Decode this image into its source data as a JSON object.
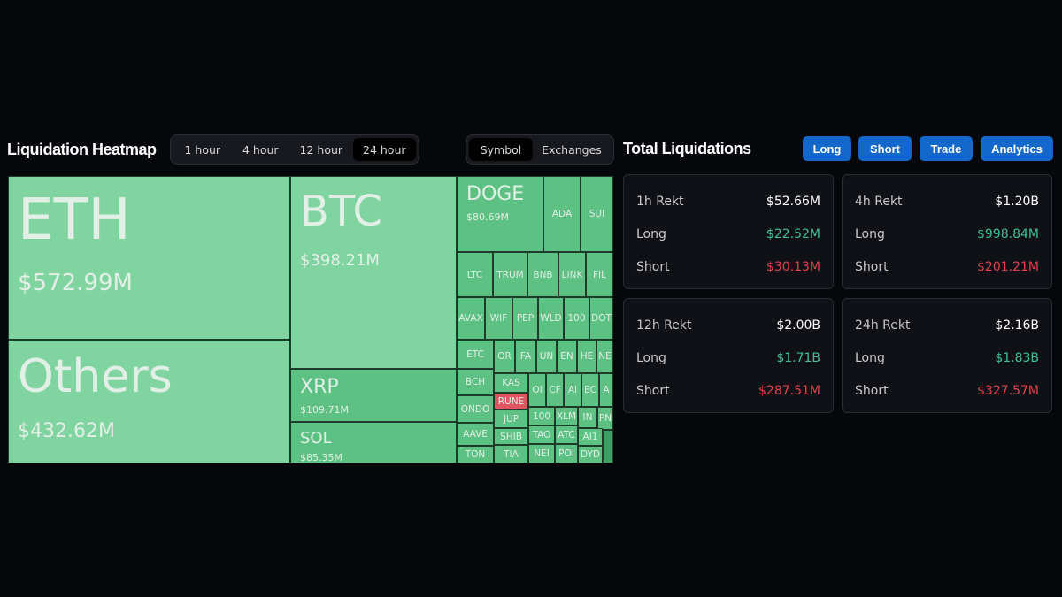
{
  "header": {
    "title": "Liquidation Heatmap",
    "time_tabs": [
      "1 hour",
      "4 hour",
      "12 hour",
      "24 hour"
    ],
    "active_time_tab": "24 hour",
    "view_tabs": [
      "Symbol",
      "Exchanges"
    ],
    "active_view_tab": "Symbol"
  },
  "treemap": {
    "colors": {
      "large": "#80d4a0",
      "small": "#5cc182",
      "negative": "#e05562"
    },
    "big": [
      {
        "symbol": "ETH",
        "value": "$572.99M"
      },
      {
        "symbol": "Others",
        "value": "$432.62M"
      },
      {
        "symbol": "BTC",
        "value": "$398.21M"
      },
      {
        "symbol": "XRP",
        "value": "$109.71M"
      },
      {
        "symbol": "SOL",
        "value": "$85.35M"
      },
      {
        "symbol": "DOGE",
        "value": "$80.69M"
      }
    ],
    "small": [
      "ADA",
      "SUI",
      "LTC",
      "TRUM",
      "BNB",
      "LINK",
      "FIL",
      "AVAX",
      "WIF",
      "PEP",
      "WLD",
      "100",
      "DOT",
      "ETC",
      "OR",
      "FA",
      "UN",
      "EN",
      "HE",
      "NE",
      "BCH",
      "ONDO",
      "AAVE",
      "TON",
      "KAS",
      "RUNE",
      "JUP",
      "SHIB",
      "TIA",
      "OI",
      "CF",
      "AI",
      "EC",
      "A",
      "100",
      "XLM",
      "IN",
      "PN",
      "TAO",
      "ATC",
      "AI1",
      "",
      "NEI",
      "POI",
      "DYD"
    ]
  },
  "right": {
    "title": "Total Liquidations",
    "buttons": [
      "Long",
      "Short",
      "Trade",
      "Analytics"
    ],
    "cards": [
      {
        "label": "1h Rekt",
        "total": "$52.66M",
        "long_label": "Long",
        "long": "$22.52M",
        "short_label": "Short",
        "short": "$30.13M"
      },
      {
        "label": "4h Rekt",
        "total": "$1.20B",
        "long_label": "Long",
        "long": "$998.84M",
        "short_label": "Short",
        "short": "$201.21M"
      },
      {
        "label": "12h Rekt",
        "total": "$2.00B",
        "long_label": "Long",
        "long": "$1.71B",
        "short_label": "Short",
        "short": "$287.51M"
      },
      {
        "label": "24h Rekt",
        "total": "$2.16B",
        "long_label": "Long",
        "long": "$1.83B",
        "short_label": "Short",
        "short": "$327.57M"
      }
    ],
    "colors": {
      "button": "#1468cc",
      "long": "#3fbf93",
      "short": "#e0414f"
    }
  }
}
